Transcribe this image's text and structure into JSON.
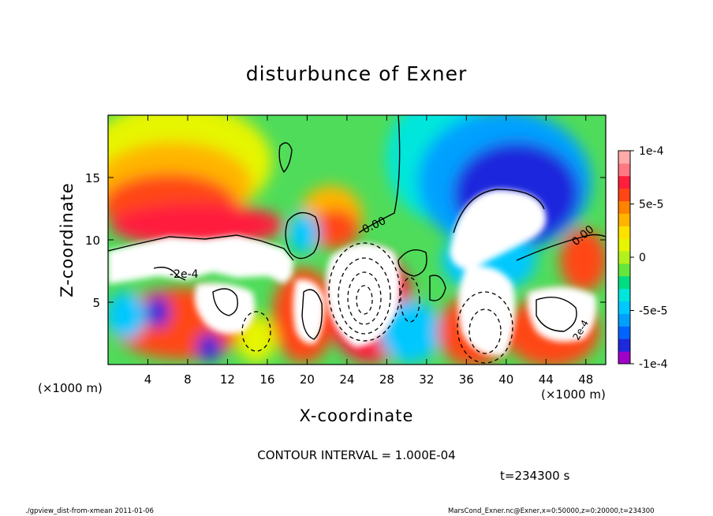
{
  "chart_data": {
    "type": "heatmap",
    "title": "disturbunce of Exner",
    "xlabel": "X-coordinate",
    "ylabel": "Z-coordinate",
    "x_unit": "(×1000 m)",
    "y_unit": "(×1000 m)",
    "xlim": [
      0,
      50
    ],
    "ylim": [
      0,
      20
    ],
    "x_ticks": [
      "4",
      "8",
      "12",
      "16",
      "20",
      "24",
      "28",
      "32",
      "36",
      "40",
      "44",
      "48"
    ],
    "x_tick_values": [
      4,
      8,
      12,
      16,
      20,
      24,
      28,
      32,
      36,
      40,
      44,
      48
    ],
    "y_ticks": [
      "5",
      "10",
      "15"
    ],
    "y_tick_values": [
      5,
      10,
      15
    ],
    "colorbar": {
      "min": -0.0001,
      "max": 0.0001,
      "tick_labels": [
        "1e-4",
        "5e-5",
        "0",
        "-5e-5",
        "-1e-4"
      ],
      "tick_values": [
        0.0001,
        5e-05,
        0,
        -5e-05,
        -0.0001
      ],
      "colors": [
        "#a000c8",
        "#1e28dc",
        "#0064ff",
        "#00a0ff",
        "#00c8ff",
        "#00e6dc",
        "#00dc82",
        "#64e63c",
        "#b4f01e",
        "#e6f500",
        "#ffe100",
        "#ffb400",
        "#ff8200",
        "#ff4614",
        "#ff1e3c",
        "#ff7882",
        "#ffaaaa"
      ]
    },
    "contour_labels": [
      "0.00",
      "0.00",
      "-2e-4",
      "2e-4"
    ],
    "contour_interval": "CONTOUR INTERVAL = 1.000E-04",
    "time_label": "t=234300 s",
    "footer_left": "./gpview_dist-from-xmean  2011-01-06",
    "footer_right": "MarsCond_Exner.nc@Exner,x=0:50000,z=0:20000,t=234300",
    "features": [
      {
        "name": "positive-upper-left",
        "x": 6,
        "z": 12,
        "value": 9e-05
      },
      {
        "name": "positive-mid",
        "x": 22.5,
        "z": 11,
        "value": 8e-05
      },
      {
        "name": "negative-upper-right",
        "x": 39.5,
        "z": 13.5,
        "value": -0.0001
      },
      {
        "name": "negative-lower-mid",
        "x": 26,
        "z": 5,
        "value": -0.0003
      },
      {
        "name": "positive-lower-left",
        "x": 9,
        "z": 4,
        "value": 0.0003
      }
    ]
  }
}
